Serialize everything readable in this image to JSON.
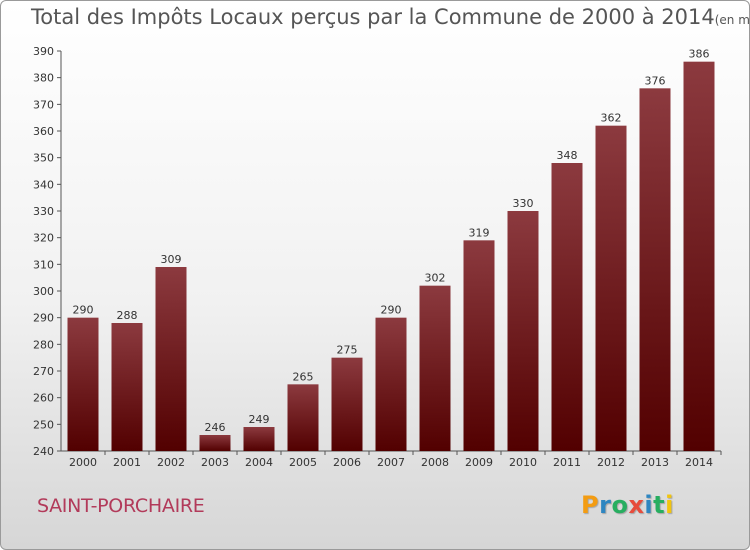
{
  "header": {
    "title": "Total des Impôts Locaux perçus par la Commune de 2000 à 2014",
    "unit": "(en milliers d'€)"
  },
  "footer": {
    "commune": "SAINT-PORCHAIRE",
    "logo_text": "Proxiti"
  },
  "colors": {
    "bar_top": "#8c3a3f",
    "bar_bottom": "#520000",
    "commune_text": "#b23a5a",
    "logo_letters": [
      "#f39c12",
      "#2e86c1",
      "#27ae60",
      "#e74c3c",
      "#2e86c1",
      "#27ae60",
      "#f1c40f"
    ]
  },
  "chart_data": {
    "type": "bar",
    "title": "Total des Impôts Locaux perçus par la Commune de 2000 à 2014",
    "subtitle": "(en milliers d'€)",
    "xlabel": "",
    "ylabel": "",
    "categories": [
      "2000",
      "2001",
      "2002",
      "2003",
      "2004",
      "2005",
      "2006",
      "2007",
      "2008",
      "2009",
      "2010",
      "2011",
      "2012",
      "2013",
      "2014"
    ],
    "values": [
      290,
      288,
      309,
      246,
      249,
      265,
      275,
      290,
      302,
      319,
      330,
      348,
      362,
      376,
      386
    ],
    "ylim": [
      240,
      390
    ],
    "yticks": [
      240,
      250,
      260,
      270,
      280,
      290,
      300,
      310,
      320,
      330,
      340,
      350,
      360,
      370,
      380,
      390
    ],
    "grid": false,
    "data_labels": true
  }
}
